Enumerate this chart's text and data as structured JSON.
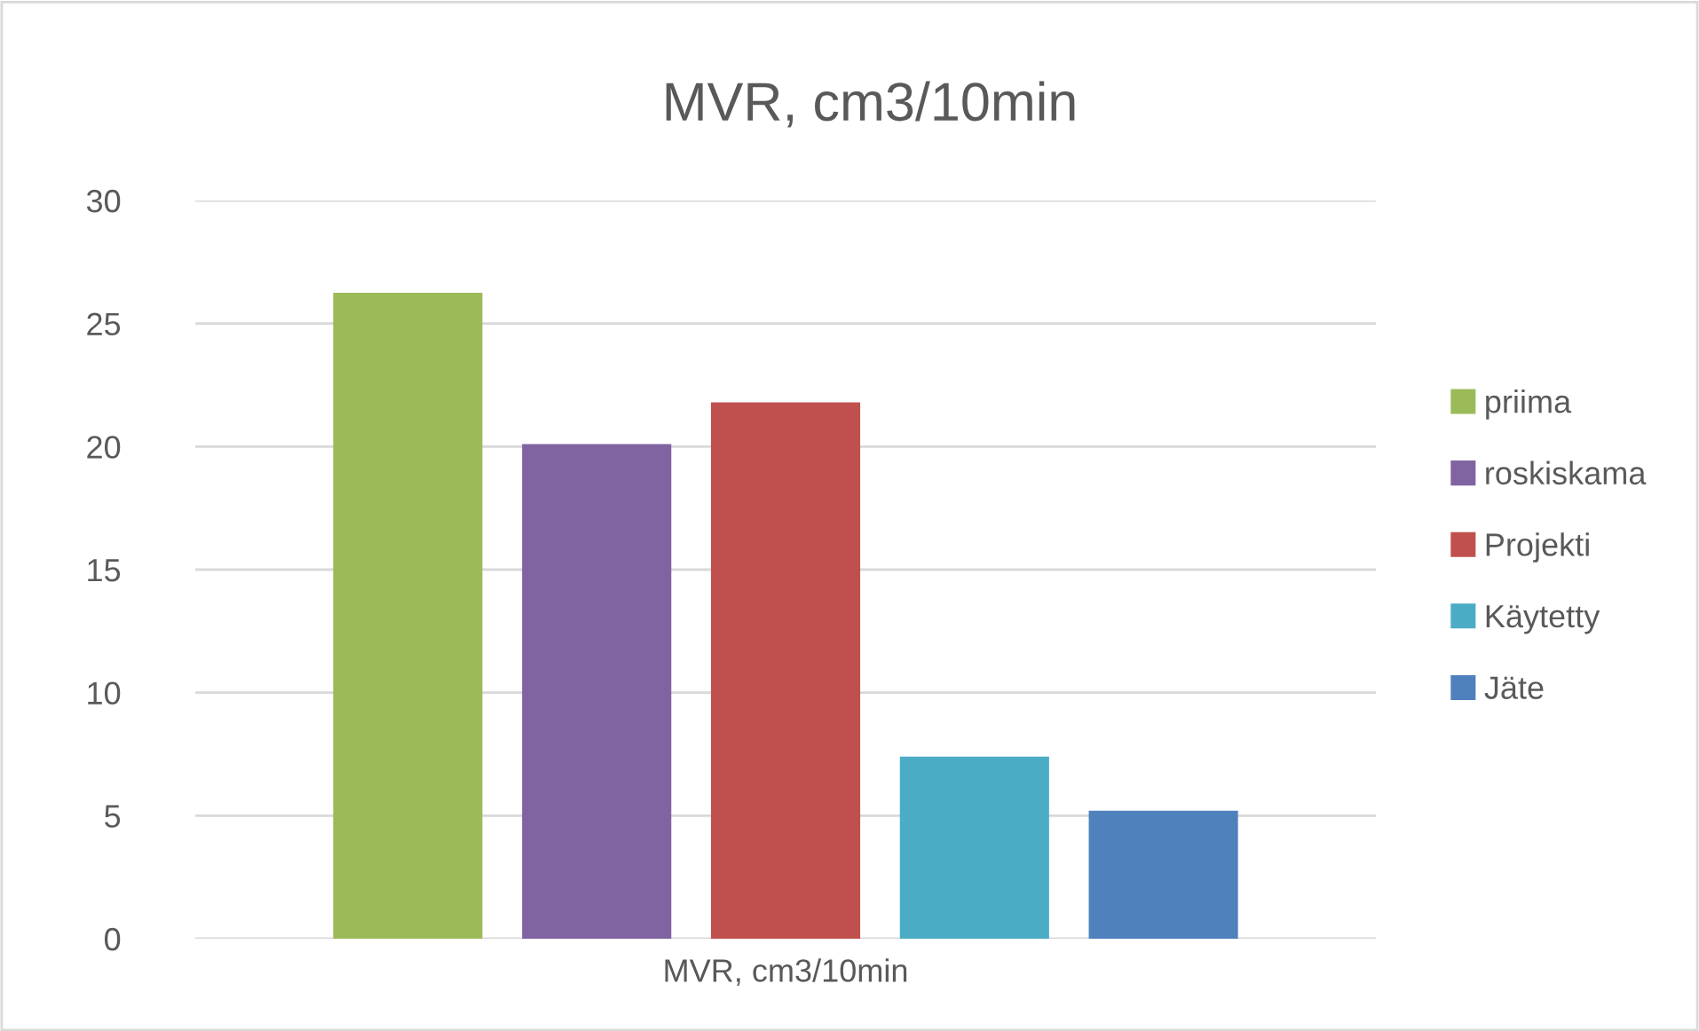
{
  "chart_data": {
    "type": "bar",
    "title": "MVR, cm3/10min",
    "categories": [
      "MVR, cm3/10min"
    ],
    "series": [
      {
        "name": "priima",
        "color": "#9bbb59",
        "values": [
          26.25
        ]
      },
      {
        "name": "roskiskama",
        "color": "#8064a2",
        "values": [
          20.1
        ]
      },
      {
        "name": "Projekti",
        "color": "#c0504d",
        "values": [
          21.8
        ]
      },
      {
        "name": "Käytetty",
        "color": "#4bacc6",
        "values": [
          7.4
        ]
      },
      {
        "name": "Jäte",
        "color": "#4f81bd",
        "values": [
          5.2
        ]
      }
    ],
    "ylim": [
      0,
      30
    ],
    "yticks": [
      0,
      5,
      10,
      15,
      20,
      25,
      30
    ],
    "grid": "y",
    "legend": "right"
  }
}
